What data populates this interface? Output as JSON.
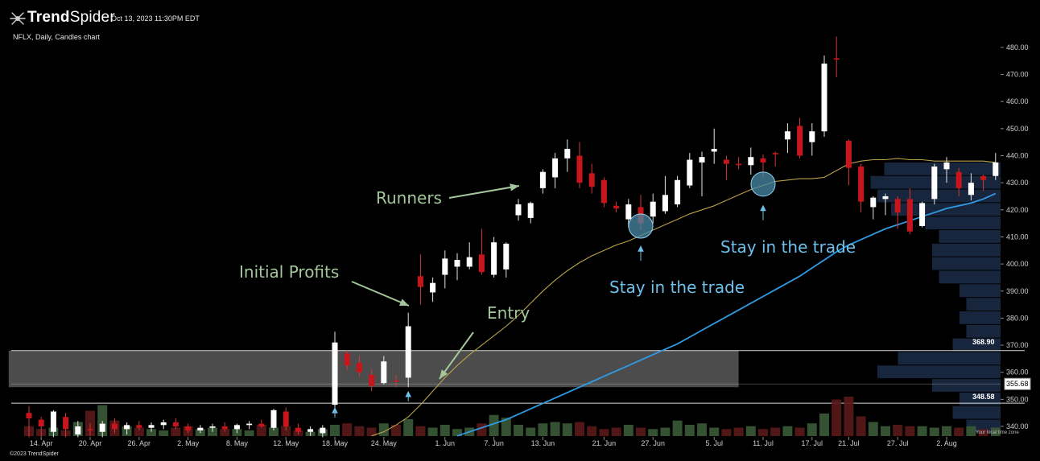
{
  "header": {
    "brand_prefix": "Trend",
    "brand_suffix": "Spider",
    "timestamp": "Oct 13, 2023 11:30PM EDT",
    "subtitle": "NFLX, Daily, Candles chart"
  },
  "footer": {
    "copyright": "©2023 TrendSpider",
    "timezone_note": "Your local time zone"
  },
  "colors": {
    "background": "#000000",
    "up_candle": "#ffffff",
    "down_candle": "#c8151b",
    "ma_short": "#b9a24a",
    "ma_long": "#2f9be3",
    "zone_fill": "#8a8a8a",
    "volume_profile": "#1a2a44",
    "annotation_green": "#a3c79a",
    "annotation_blue": "#6fc0ea",
    "marker_circle": "#4a8aa6"
  },
  "chart_data": {
    "type": "candlestick",
    "symbol": "NFLX",
    "timeframe": "Daily",
    "ylim": [
      336,
      484
    ],
    "y_ticks": [
      340,
      350,
      360,
      370,
      380,
      390,
      400,
      410,
      420,
      430,
      440,
      450,
      460,
      470,
      480
    ],
    "x_tick_labels": [
      "14. Apr",
      "20. Apr",
      "26. Apr",
      "2. May",
      "8. May",
      "12. May",
      "18. May",
      "24. May",
      "1. Jun",
      "7. Jun",
      "13. Jun",
      "21. Jun",
      "27. Jun",
      "5. Jul",
      "11. Jul",
      "17. Jul",
      "21. Jul",
      "27. Jul",
      "2. Aug"
    ],
    "x_tick_index": [
      1,
      5,
      9,
      13,
      17,
      21,
      25,
      29,
      34,
      38,
      42,
      47,
      51,
      56,
      60,
      64,
      67,
      71,
      75
    ],
    "price_labels": [
      {
        "label": "368.90",
        "value": 368.9
      },
      {
        "label": "355.68",
        "value": 355.68,
        "boxed": true
      },
      {
        "label": "348.58",
        "value": 348.58
      }
    ],
    "zone": {
      "low": 354.5,
      "high": 368.0,
      "start_index": -1,
      "end_index": 58
    },
    "candles": [
      {
        "o": 345.0,
        "h": 347.5,
        "l": 336.0,
        "c": 343.0
      },
      {
        "o": 342.5,
        "h": 343.5,
        "l": 336.0,
        "c": 340.0
      },
      {
        "o": 338.0,
        "h": 346.0,
        "l": 336.0,
        "c": 345.5
      },
      {
        "o": 343.5,
        "h": 345.0,
        "l": 336.0,
        "c": 339.0
      },
      {
        "o": 337.0,
        "h": 342.0,
        "l": 336.0,
        "c": 340.0
      },
      {
        "o": 339.0,
        "h": 341.0,
        "l": 336.5,
        "c": 338.5
      },
      {
        "o": 338.0,
        "h": 342.0,
        "l": 336.0,
        "c": 341.0
      },
      {
        "o": 341.0,
        "h": 343.0,
        "l": 337.5,
        "c": 339.0
      },
      {
        "o": 339.0,
        "h": 341.5,
        "l": 337.0,
        "c": 340.5
      },
      {
        "o": 340.5,
        "h": 342.0,
        "l": 338.5,
        "c": 339.5
      },
      {
        "o": 339.5,
        "h": 341.5,
        "l": 338.0,
        "c": 340.5
      },
      {
        "o": 340.5,
        "h": 342.5,
        "l": 339.0,
        "c": 341.5
      },
      {
        "o": 341.5,
        "h": 343.0,
        "l": 339.0,
        "c": 340.0
      },
      {
        "o": 340.0,
        "h": 341.0,
        "l": 337.5,
        "c": 338.5
      },
      {
        "o": 338.5,
        "h": 340.5,
        "l": 337.5,
        "c": 339.5
      },
      {
        "o": 339.5,
        "h": 341.0,
        "l": 338.0,
        "c": 340.0
      },
      {
        "o": 340.0,
        "h": 341.5,
        "l": 338.0,
        "c": 339.0
      },
      {
        "o": 339.0,
        "h": 341.0,
        "l": 337.5,
        "c": 340.5
      },
      {
        "o": 340.5,
        "h": 342.0,
        "l": 339.0,
        "c": 341.0
      },
      {
        "o": 341.0,
        "h": 342.5,
        "l": 339.5,
        "c": 340.0
      },
      {
        "o": 339.5,
        "h": 346.5,
        "l": 338.5,
        "c": 346.0
      },
      {
        "o": 345.5,
        "h": 347.0,
        "l": 338.5,
        "c": 340.0
      },
      {
        "o": 339.5,
        "h": 341.0,
        "l": 337.0,
        "c": 338.0
      },
      {
        "o": 338.0,
        "h": 340.0,
        "l": 336.5,
        "c": 339.0
      },
      {
        "o": 337.5,
        "h": 340.5,
        "l": 336.0,
        "c": 339.5
      },
      {
        "o": 348.0,
        "h": 375.0,
        "l": 346.5,
        "c": 371.0
      },
      {
        "o": 367.0,
        "h": 368.0,
        "l": 361.0,
        "c": 362.5
      },
      {
        "o": 363.5,
        "h": 366.0,
        "l": 358.5,
        "c": 360.0
      },
      {
        "o": 359.0,
        "h": 361.0,
        "l": 353.0,
        "c": 355.0
      },
      {
        "o": 356.0,
        "h": 366.0,
        "l": 355.5,
        "c": 364.0
      },
      {
        "o": 357.0,
        "h": 359.0,
        "l": 354.5,
        "c": 356.5
      },
      {
        "o": 358.0,
        "h": 382.0,
        "l": 354.5,
        "c": 377.0
      },
      {
        "o": 395.5,
        "h": 403.5,
        "l": 385.0,
        "c": 391.5
      },
      {
        "o": 389.5,
        "h": 395.0,
        "l": 386.0,
        "c": 393.0
      },
      {
        "o": 396.0,
        "h": 405.0,
        "l": 391.0,
        "c": 402.0
      },
      {
        "o": 399.0,
        "h": 404.0,
        "l": 394.0,
        "c": 401.5
      },
      {
        "o": 399.0,
        "h": 408.0,
        "l": 398.0,
        "c": 402.5
      },
      {
        "o": 403.5,
        "h": 413.0,
        "l": 396.0,
        "c": 397.0
      },
      {
        "o": 396.0,
        "h": 410.0,
        "l": 395.0,
        "c": 408.0
      },
      {
        "o": 398.0,
        "h": 408.0,
        "l": 395.0,
        "c": 407.5
      },
      {
        "o": 418.0,
        "h": 424.0,
        "l": 416.0,
        "c": 422.0
      },
      {
        "o": 417.0,
        "h": 423.0,
        "l": 415.0,
        "c": 422.5
      },
      {
        "o": 428.0,
        "h": 435.0,
        "l": 426.0,
        "c": 434.0
      },
      {
        "o": 432.0,
        "h": 441.0,
        "l": 428.0,
        "c": 439.0
      },
      {
        "o": 439.0,
        "h": 446.0,
        "l": 434.0,
        "c": 442.5
      },
      {
        "o": 440.0,
        "h": 445.0,
        "l": 428.0,
        "c": 430.0
      },
      {
        "o": 433.5,
        "h": 437.0,
        "l": 426.0,
        "c": 428.5
      },
      {
        "o": 431.0,
        "h": 432.0,
        "l": 421.0,
        "c": 422.5
      },
      {
        "o": 421.5,
        "h": 423.0,
        "l": 419.0,
        "c": 420.5
      },
      {
        "o": 416.5,
        "h": 424.0,
        "l": 413.5,
        "c": 422.0
      },
      {
        "o": 421.0,
        "h": 425.5,
        "l": 412.5,
        "c": 415.0
      },
      {
        "o": 417.5,
        "h": 426.0,
        "l": 415.0,
        "c": 423.0
      },
      {
        "o": 419.5,
        "h": 432.5,
        "l": 418.5,
        "c": 425.5
      },
      {
        "o": 422.0,
        "h": 432.5,
        "l": 421.0,
        "c": 431.0
      },
      {
        "o": 429.0,
        "h": 441.0,
        "l": 428.0,
        "c": 438.5
      },
      {
        "o": 437.5,
        "h": 441.5,
        "l": 425.0,
        "c": 439.5
      },
      {
        "o": 441.5,
        "h": 450.0,
        "l": 437.0,
        "c": 442.5
      },
      {
        "o": 438.5,
        "h": 440.0,
        "l": 431.0,
        "c": 437.0
      },
      {
        "o": 437.0,
        "h": 439.5,
        "l": 435.0,
        "c": 436.5
      },
      {
        "o": 436.5,
        "h": 443.0,
        "l": 433.0,
        "c": 439.5
      },
      {
        "o": 439.0,
        "h": 440.5,
        "l": 432.0,
        "c": 437.5
      },
      {
        "o": 441.0,
        "h": 441.5,
        "l": 436.0,
        "c": 440.5
      },
      {
        "o": 446.0,
        "h": 452.0,
        "l": 441.0,
        "c": 449.0
      },
      {
        "o": 451.0,
        "h": 454.0,
        "l": 439.0,
        "c": 440.0
      },
      {
        "o": 445.0,
        "h": 452.0,
        "l": 440.0,
        "c": 449.0
      },
      {
        "o": 449.0,
        "h": 477.0,
        "l": 447.0,
        "c": 474.0
      },
      {
        "o": 476.0,
        "h": 484.0,
        "l": 469.0,
        "c": 475.5
      },
      {
        "o": 445.5,
        "h": 446.0,
        "l": 429.0,
        "c": 435.5
      },
      {
        "o": 436.0,
        "h": 437.0,
        "l": 419.0,
        "c": 423.0
      },
      {
        "o": 421.0,
        "h": 425.0,
        "l": 416.5,
        "c": 424.5
      },
      {
        "o": 424.0,
        "h": 426.0,
        "l": 418.0,
        "c": 425.0
      },
      {
        "o": 424.0,
        "h": 425.0,
        "l": 413.0,
        "c": 419.0
      },
      {
        "o": 424.0,
        "h": 428.0,
        "l": 411.0,
        "c": 412.0
      },
      {
        "o": 414.0,
        "h": 423.0,
        "l": 413.5,
        "c": 422.5
      },
      {
        "o": 424.0,
        "h": 437.0,
        "l": 422.0,
        "c": 436.0
      },
      {
        "o": 435.0,
        "h": 439.5,
        "l": 430.0,
        "c": 437.5
      },
      {
        "o": 434.0,
        "h": 435.5,
        "l": 425.0,
        "c": 428.0
      },
      {
        "o": 425.5,
        "h": 433.5,
        "l": 423.5,
        "c": 430.0
      },
      {
        "o": 432.5,
        "h": 433.0,
        "l": 427.0,
        "c": 431.0
      },
      {
        "o": 432.5,
        "h": 441.0,
        "l": 431.0,
        "c": 437.5
      }
    ],
    "volume": [
      7,
      5,
      6,
      4,
      10,
      18,
      22,
      11,
      7,
      6,
      5,
      4,
      6,
      7,
      5,
      6,
      5,
      5,
      4,
      8,
      6,
      7,
      4,
      3,
      5,
      8,
      9,
      7,
      6,
      9,
      8,
      12,
      7,
      6,
      8,
      5,
      6,
      9,
      15,
      13,
      8,
      6,
      9,
      10,
      9,
      10,
      7,
      5,
      6,
      8,
      6,
      5,
      6,
      11,
      8,
      9,
      6,
      5,
      6,
      7,
      5,
      6,
      7,
      6,
      9,
      16,
      26,
      28,
      14,
      10,
      7,
      8,
      7,
      7,
      6,
      7,
      6,
      7,
      5,
      6
    ],
    "series": [
      {
        "name": "",
        "values": [
          null,
          null,
          null,
          null,
          null,
          null,
          null,
          null,
          null,
          null,
          null,
          null,
          null,
          null,
          null,
          null,
          null,
          null,
          null,
          null,
          null,
          null,
          null,
          null,
          null,
          null,
          null,
          null,
          336.5,
          338.0,
          340.5,
          343.5,
          348.0,
          353.0,
          358.0,
          362.5,
          366.5,
          370.0,
          373.5,
          377.0,
          381.0,
          385.5,
          390.0,
          394.0,
          397.5,
          400.5,
          403.0,
          405.0,
          407.0,
          408.5,
          410.5,
          412.5,
          414.5,
          416.5,
          418.5,
          420.0,
          421.5,
          423.5,
          425.5,
          427.5,
          429.0,
          430.5,
          431.0,
          431.5,
          431.5,
          432.0,
          434.5,
          437.0,
          438.0,
          438.5,
          438.5,
          439.0,
          438.5,
          438.5,
          438.0,
          438.0,
          438.0,
          438.0,
          438.0,
          437.5
        ]
      },
      {
        "name": "",
        "values": [
          null,
          null,
          null,
          null,
          null,
          null,
          null,
          null,
          null,
          null,
          null,
          null,
          null,
          null,
          null,
          null,
          null,
          null,
          null,
          null,
          null,
          null,
          null,
          null,
          null,
          null,
          null,
          null,
          null,
          null,
          null,
          null,
          null,
          null,
          null,
          336.5,
          338.0,
          339.5,
          341.0,
          342.5,
          344.5,
          346.5,
          348.5,
          350.5,
          352.5,
          354.5,
          356.5,
          358.5,
          360.5,
          362.5,
          364.5,
          366.5,
          368.5,
          370.5,
          373.0,
          375.5,
          378.0,
          380.5,
          383.0,
          385.5,
          388.0,
          390.5,
          393.0,
          395.5,
          398.5,
          401.5,
          404.5,
          407.0,
          409.0,
          411.0,
          413.0,
          414.5,
          416.0,
          417.5,
          419.0,
          420.5,
          421.5,
          422.5,
          424.0,
          426.0
        ]
      }
    ],
    "volume_profile": [
      {
        "price": 435,
        "weight": 0.85
      },
      {
        "price": 430,
        "weight": 0.95
      },
      {
        "price": 425,
        "weight": 0.9
      },
      {
        "price": 420,
        "weight": 0.8
      },
      {
        "price": 415,
        "weight": 0.55
      },
      {
        "price": 410,
        "weight": 0.45
      },
      {
        "price": 405,
        "weight": 0.5
      },
      {
        "price": 400,
        "weight": 0.5
      },
      {
        "price": 395,
        "weight": 0.45
      },
      {
        "price": 390,
        "weight": 0.3
      },
      {
        "price": 385,
        "weight": 0.25
      },
      {
        "price": 380,
        "weight": 0.3
      },
      {
        "price": 375,
        "weight": 0.25
      },
      {
        "price": 370,
        "weight": 0.35
      },
      {
        "price": 365,
        "weight": 0.75
      },
      {
        "price": 360,
        "weight": 0.9
      },
      {
        "price": 355,
        "weight": 0.5
      },
      {
        "price": 350,
        "weight": 0.3
      },
      {
        "price": 345,
        "weight": 0.35
      },
      {
        "price": 340,
        "weight": 0.25
      }
    ],
    "signals": [
      {
        "index": 25,
        "price": 345.0
      },
      {
        "index": 31,
        "price": 351.0
      }
    ],
    "markers": [
      {
        "index": 50,
        "price": 414.0
      },
      {
        "index": 60,
        "price": 429.5
      }
    ],
    "marker_arrows": [
      {
        "index": 50,
        "price": 405.0
      },
      {
        "index": 60,
        "price": 420.0
      }
    ],
    "annotations": [
      {
        "text": "Runners",
        "color": "green",
        "size": 20
      },
      {
        "text": "Initial Profits",
        "color": "green",
        "size": 20
      },
      {
        "text": "Entry",
        "color": "green",
        "size": 20
      },
      {
        "text": "Stay in the trade",
        "color": "blue",
        "size": 20
      },
      {
        "text": "Stay in the trade",
        "color": "blue",
        "size": 20
      }
    ]
  }
}
